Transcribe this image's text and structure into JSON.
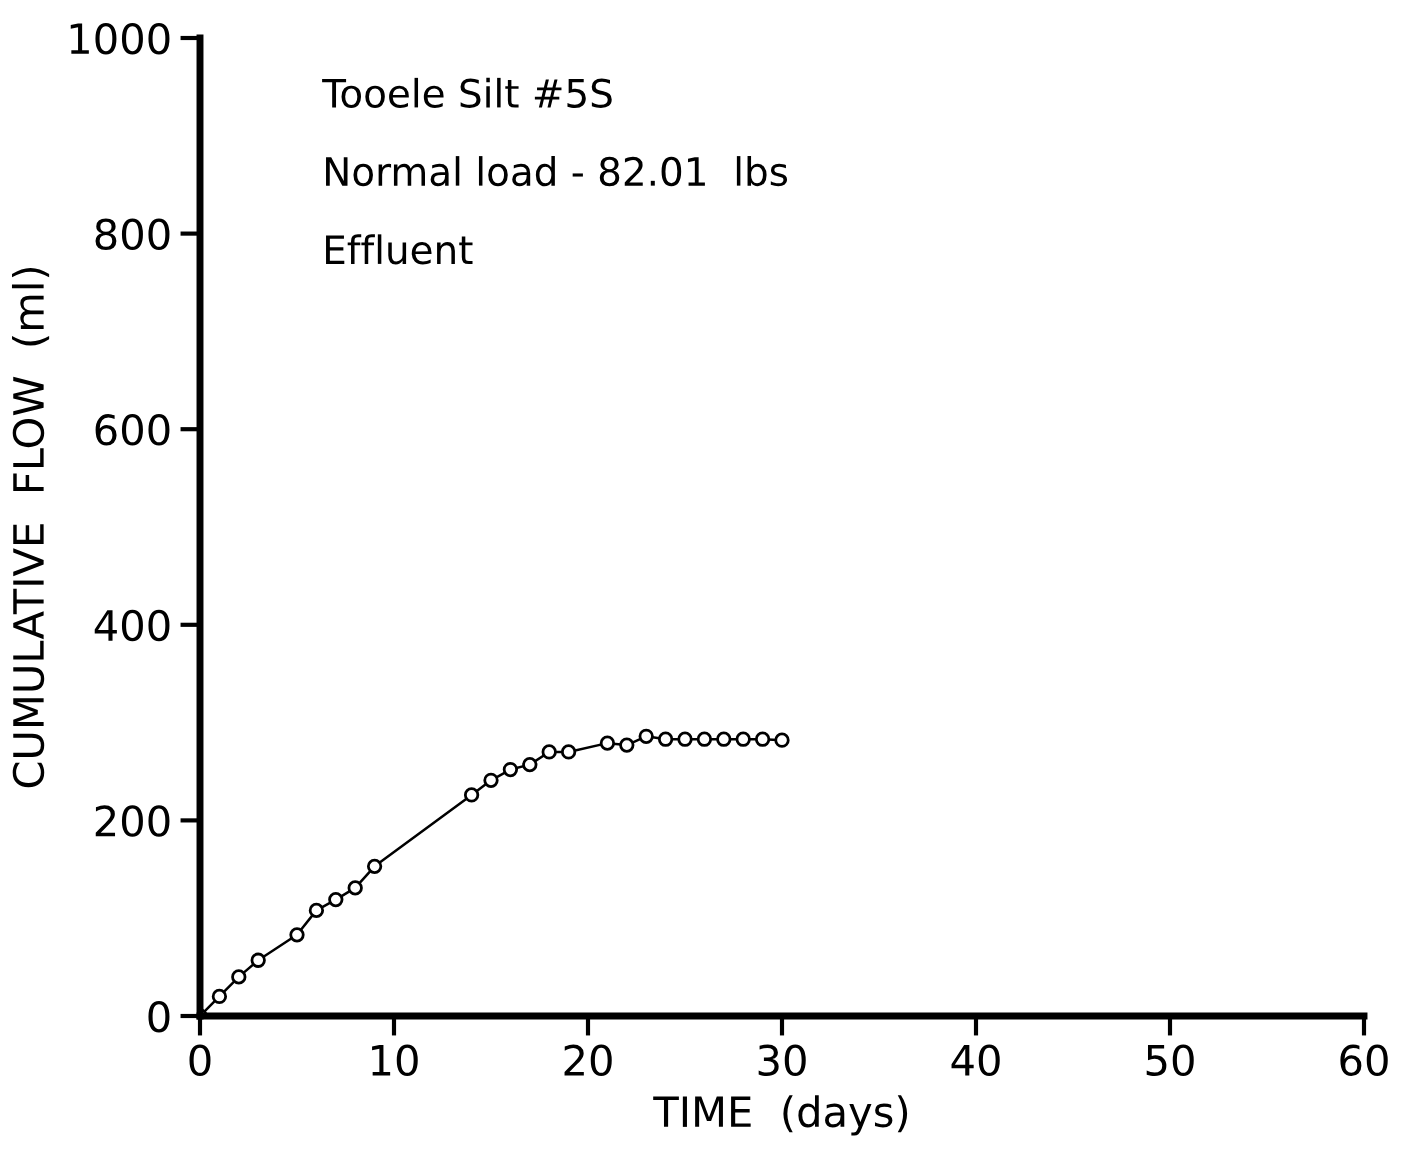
{
  "chart_data": {
    "type": "line",
    "xlabel": "TIME  (days)",
    "ylabel": "CUMULATIVE  FLOW  (ml)",
    "annotations": [
      "Tooele Silt #5S",
      "Normal load - 82.01  lbs",
      "Effluent"
    ],
    "x": [
      0,
      1,
      2,
      3,
      5,
      6,
      7,
      8,
      9,
      14,
      15,
      16,
      17,
      18,
      19,
      21,
      22,
      23,
      24,
      25,
      26,
      27,
      28,
      29,
      30
    ],
    "series": [
      {
        "color": "#000000",
        "values": [
          0,
          20,
          40,
          57,
          83,
          108,
          119,
          131,
          153,
          226,
          241,
          252,
          257,
          270,
          270,
          279,
          277,
          286,
          283,
          283,
          283,
          283,
          283,
          283,
          282
        ]
      }
    ],
    "xlim": [
      0,
      60
    ],
    "ylim": [
      0,
      1000
    ],
    "xticks": [
      0,
      10,
      20,
      30,
      40,
      50,
      60
    ],
    "yticks": [
      0,
      200,
      400,
      600,
      800,
      1000
    ],
    "marker": "circle",
    "line_style": "solid",
    "grid": false,
    "legend": false
  }
}
